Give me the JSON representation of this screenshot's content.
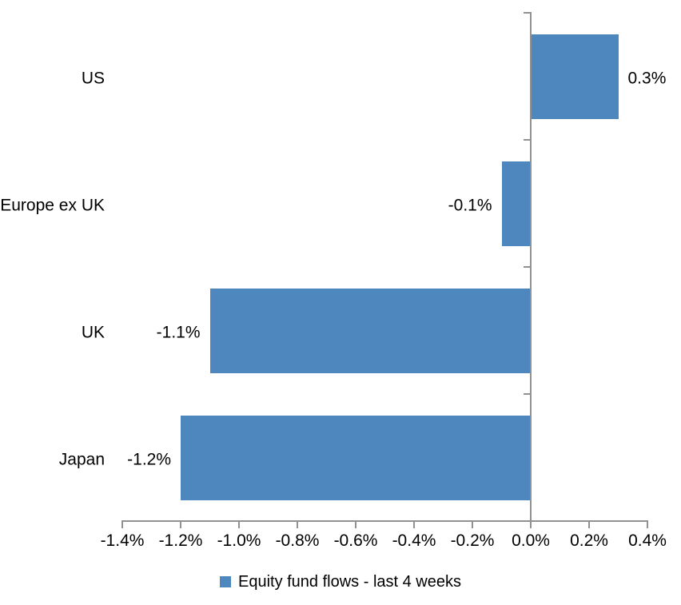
{
  "chart_data": {
    "type": "bar",
    "orientation": "horizontal",
    "title": "",
    "xlabel": "",
    "ylabel": "",
    "categories": [
      "US",
      "Europe ex UK",
      "UK",
      "Japan"
    ],
    "values": [
      0.3,
      -0.1,
      -1.1,
      -1.2
    ],
    "data_labels": [
      "0.3%",
      "-0.1%",
      "-1.1%",
      "-1.2%"
    ],
    "series": [
      {
        "name": "Equity fund flows - last 4 weeks",
        "values": [
          0.3,
          -0.1,
          -1.1,
          -1.2
        ]
      }
    ],
    "unit": "%",
    "xlim": [
      -1.4,
      0.4
    ],
    "x_tick_values": [
      -1.4,
      -1.2,
      -1.0,
      -0.8,
      -0.6,
      -0.4,
      -0.2,
      0.0,
      0.2,
      0.4
    ],
    "x_tick_labels": [
      "-1.4%",
      "-1.2%",
      "-1.0%",
      "-0.8%",
      "-0.6%",
      "-0.4%",
      "-0.2%",
      "0.0%",
      "0.2%",
      "0.4%"
    ],
    "grid": false,
    "legend_position": "bottom",
    "legend_label": "Equity fund flows - last 4 weeks",
    "bar_color": "#4e87be",
    "axis_color": "#919191",
    "text_color": "#000000",
    "background_color": "#ffffff"
  }
}
